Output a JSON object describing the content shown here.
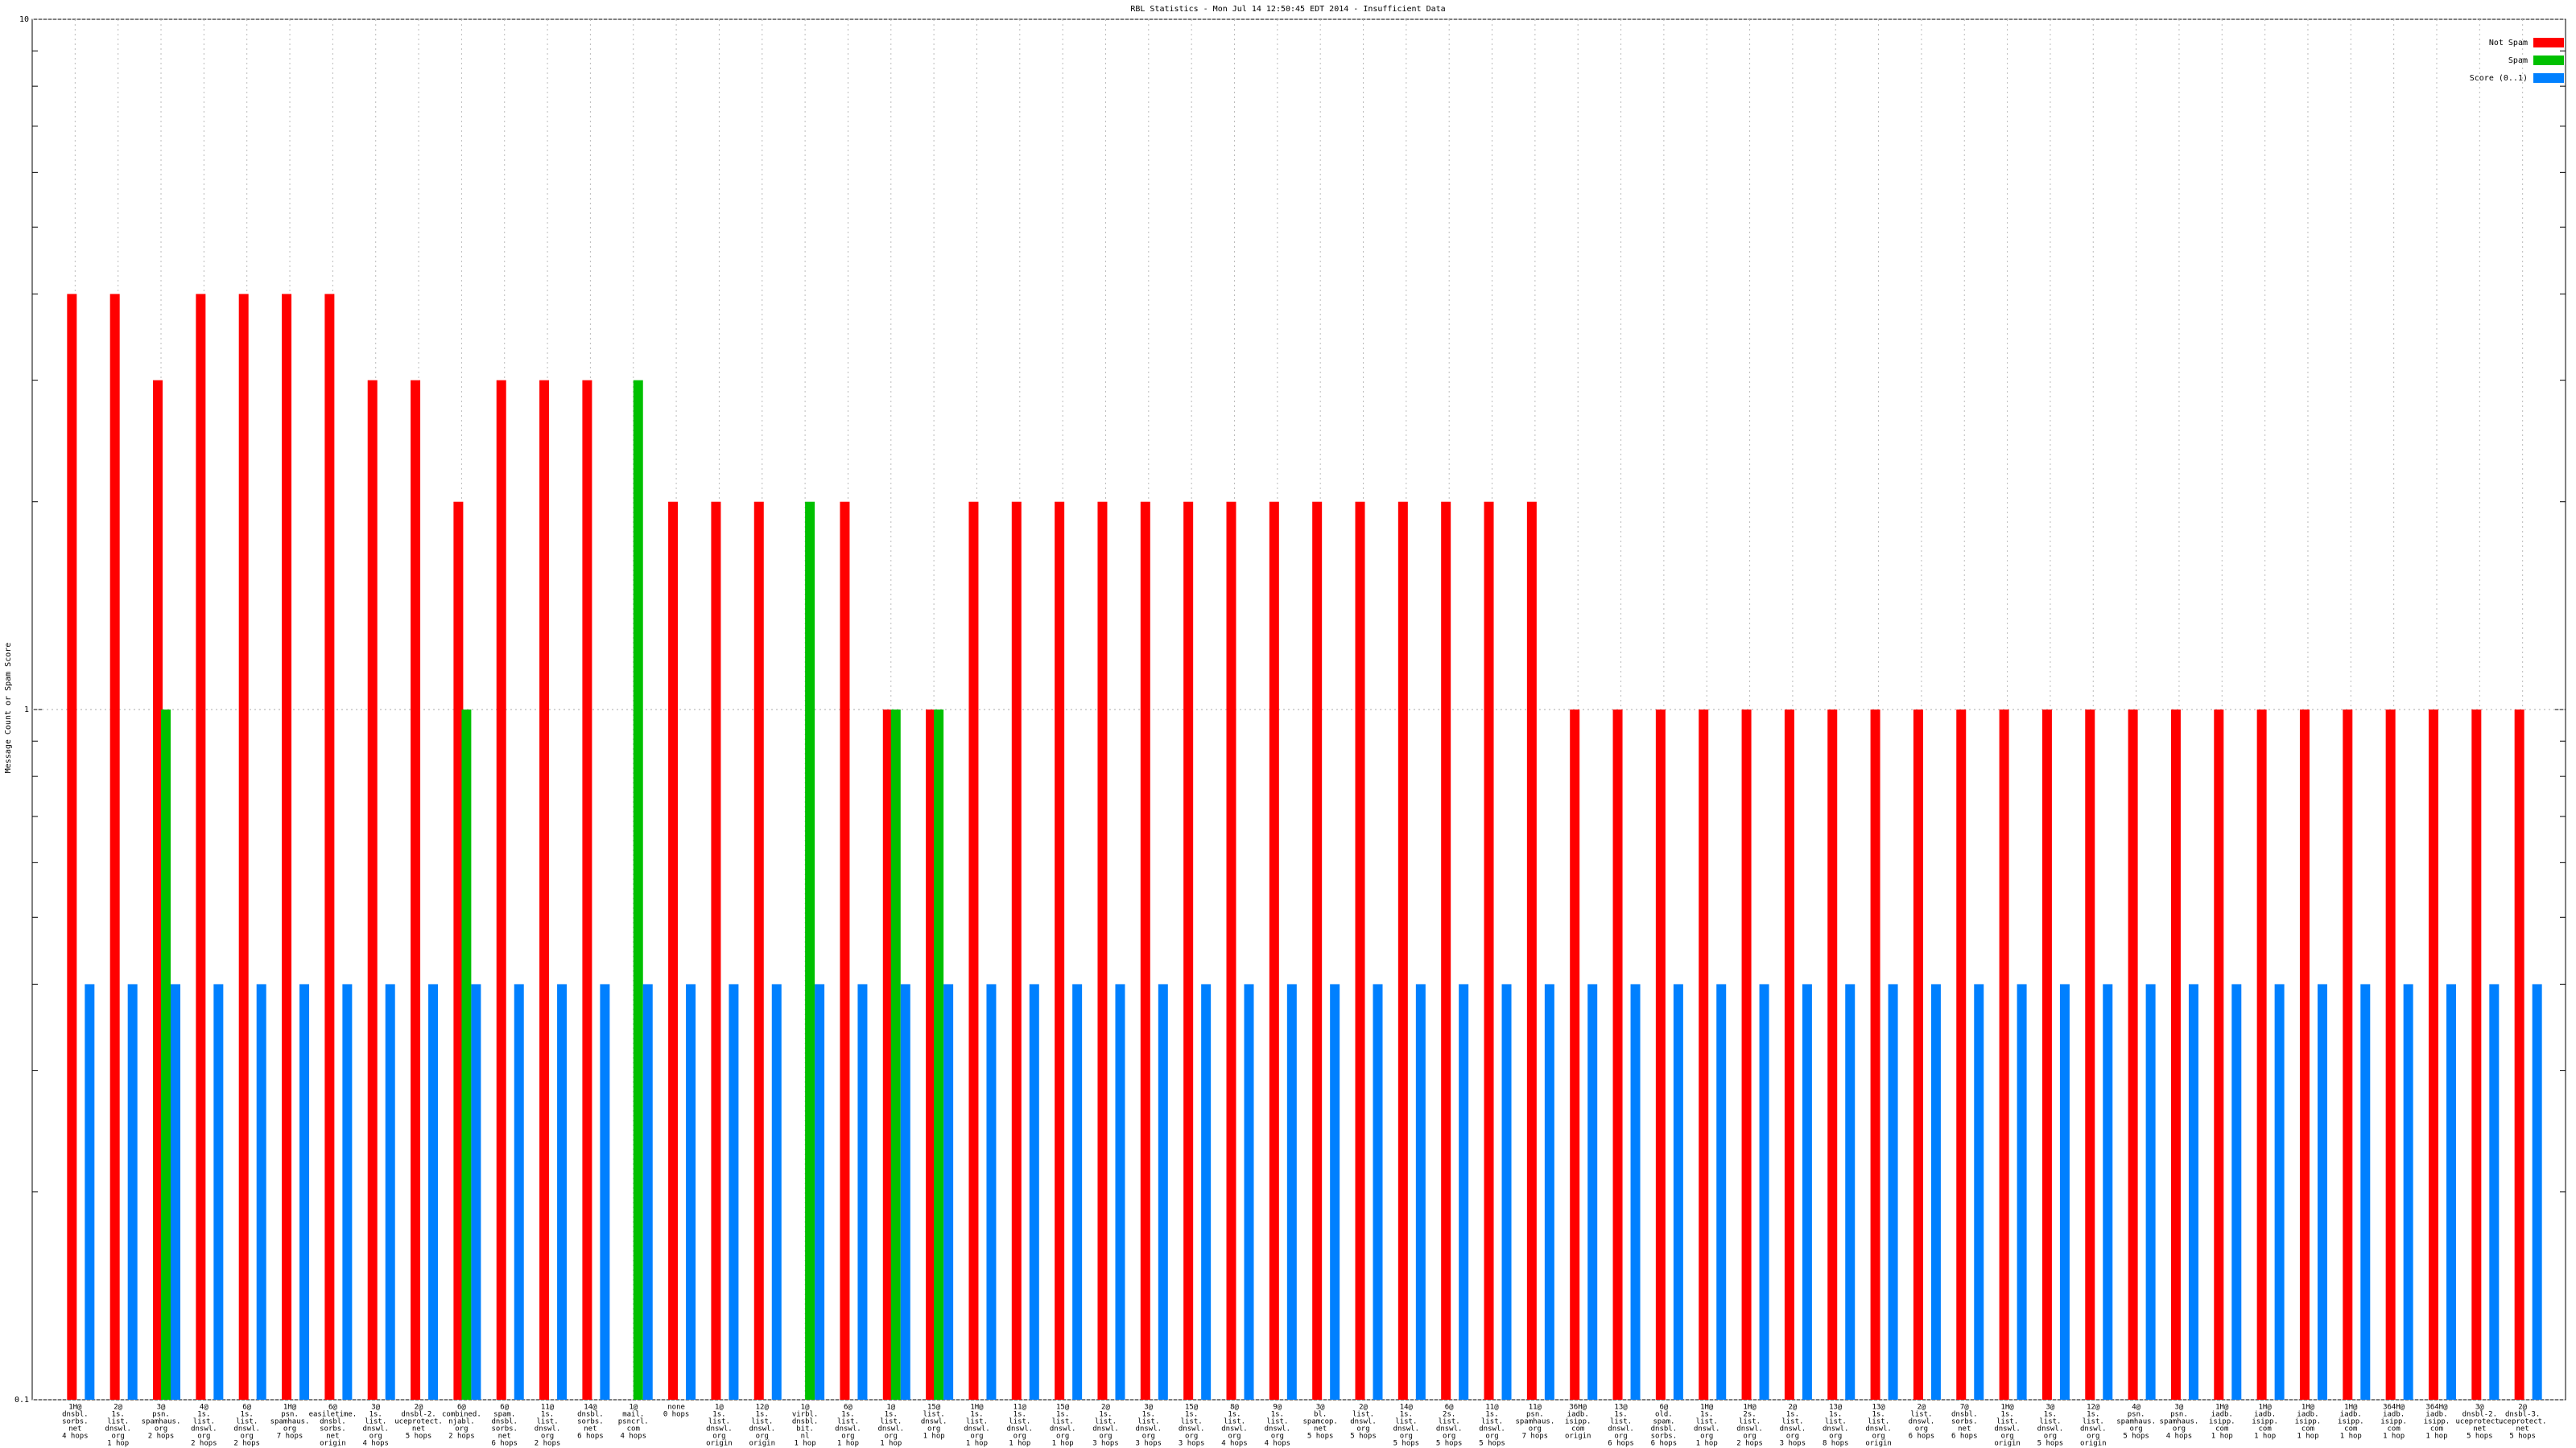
{
  "chart_data": {
    "type": "bar",
    "title": "RBL Statistics - Mon Jul 14 12:50:45 EDT 2014 - Insufficient Data",
    "y_label": "Message Count or Spam Score",
    "log_y": true,
    "ylim": [
      0.1,
      10
    ],
    "yticks": [
      0.1,
      1,
      10
    ],
    "yminorticks": [
      0.2,
      0.3,
      0.4,
      0.5,
      0.6,
      0.7,
      0.8,
      0.9,
      2,
      3,
      4,
      5,
      6,
      7,
      8,
      9
    ],
    "grid": true,
    "legend": "upper right",
    "categories": [
      [
        "1H@",
        "dnsbl.",
        "sorbs.",
        "net",
        "4 hops"
      ],
      [
        "2@",
        "1s.",
        "list.",
        "dnswl.",
        "org",
        "1 hop"
      ],
      [
        "3@",
        "psn.",
        "spamhaus.",
        "org",
        "2 hops"
      ],
      [
        "4@",
        "1s.",
        "list.",
        "dnswl.",
        "org",
        "2 hops"
      ],
      [
        "6@",
        "1s.",
        "list.",
        "dnswl.",
        "org",
        "2 hops"
      ],
      [
        "1H@",
        "psn.",
        "spamhaus.",
        "org",
        "7 hops"
      ],
      [
        "6@",
        "easiletime.",
        "dnsbl.",
        "sorbs.",
        "net",
        "origin"
      ],
      [
        "3@",
        "1s.",
        "list.",
        "dnswl.",
        "org",
        "4 hops"
      ],
      [
        "2@",
        "dnsbl-2.",
        "uceprotect.",
        "net",
        "5 hops"
      ],
      [
        "6@",
        "combined.",
        "njabl.",
        "org",
        "2 hops"
      ],
      [
        "6@",
        "spam.",
        "dnsbl.",
        "sorbs.",
        "net",
        "6 hops"
      ],
      [
        "11@",
        "1s.",
        "list.",
        "dnswl.",
        "org",
        "2 hops"
      ],
      [
        "14@",
        "dnsbl.",
        "sorbs.",
        "net",
        "6 hops"
      ],
      [
        "1@",
        "mail.",
        "psncrl.",
        "com",
        "4 hops"
      ],
      [
        "none",
        "0 hops"
      ],
      [
        "1@",
        "1s.",
        "list.",
        "dnswl.",
        "org",
        "origin"
      ],
      [
        "12@",
        "1s.",
        "list.",
        "dnswl.",
        "org",
        "origin"
      ],
      [
        "1@",
        "virbl.",
        "dnsbl.",
        "bit.",
        "nl",
        "1 hop"
      ],
      [
        "6@",
        "1s.",
        "list.",
        "dnswl.",
        "org",
        "1 hop"
      ],
      [
        "1@",
        "1s.",
        "list.",
        "dnswl.",
        "org",
        "1 hop"
      ],
      [
        "15@",
        "list.",
        "dnswl.",
        "org",
        "1 hop"
      ],
      [
        "1H@",
        "1s.",
        "list.",
        "dnswl.",
        "org",
        "1 hop"
      ],
      [
        "11@",
        "1s.",
        "list.",
        "dnswl.",
        "org",
        "1 hop"
      ],
      [
        "15@",
        "1s.",
        "list.",
        "dnswl.",
        "org",
        "1 hop"
      ],
      [
        "2@",
        "1s.",
        "list.",
        "dnswl.",
        "org",
        "3 hops"
      ],
      [
        "3@",
        "1s.",
        "list.",
        "dnswl.",
        "org",
        "3 hops"
      ],
      [
        "15@",
        "1s.",
        "list.",
        "dnswl.",
        "org",
        "3 hops"
      ],
      [
        "8@",
        "1s.",
        "list.",
        "dnswl.",
        "org",
        "4 hops"
      ],
      [
        "9@",
        "1s.",
        "list.",
        "dnswl.",
        "org",
        "4 hops"
      ],
      [
        "3@",
        "bl.",
        "spamcop.",
        "net",
        "5 hops"
      ],
      [
        "2@",
        "list.",
        "dnswl.",
        "org",
        "5 hops"
      ],
      [
        "14@",
        "1s.",
        "list.",
        "dnswl.",
        "org",
        "5 hops"
      ],
      [
        "6@",
        "2s.",
        "list.",
        "dnswl.",
        "org",
        "5 hops"
      ],
      [
        "11@",
        "1s.",
        "list.",
        "dnswl.",
        "org",
        "5 hops"
      ],
      [
        "11@",
        "psn.",
        "spamhaus.",
        "org",
        "7 hops"
      ],
      [
        "36H@",
        "iadb.",
        "isipp.",
        "com",
        "origin"
      ],
      [
        "13@",
        "1s.",
        "list.",
        "dnswl.",
        "org",
        "6 hops"
      ],
      [
        "6@",
        "old.",
        "spam.",
        "dnsbl.",
        "sorbs.",
        "6 hops"
      ],
      [
        "1H@",
        "1s.",
        "list.",
        "dnswl.",
        "org",
        "1 hop"
      ],
      [
        "1H@",
        "2s.",
        "list.",
        "dnswl.",
        "org",
        "2 hops"
      ],
      [
        "2@",
        "1s.",
        "list.",
        "dnswl.",
        "org",
        "3 hops"
      ],
      [
        "13@",
        "1s.",
        "list.",
        "dnswl.",
        "org",
        "8 hops"
      ],
      [
        "13@",
        "1s.",
        "list.",
        "dnswl.",
        "org",
        "origin"
      ],
      [
        "2@",
        "list.",
        "dnswl.",
        "org",
        "6 hops"
      ],
      [
        "7@",
        "dnsbl.",
        "sorbs.",
        "net",
        "6 hops"
      ],
      [
        "1H@",
        "1s.",
        "list.",
        "dnswl.",
        "org",
        "origin"
      ],
      [
        "3@",
        "1s.",
        "list.",
        "dnswl.",
        "org",
        "5 hops"
      ],
      [
        "12@",
        "1s.",
        "list.",
        "dnswl.",
        "org",
        "origin"
      ],
      [
        "4@",
        "psn.",
        "spamhaus.",
        "org",
        "5 hops"
      ],
      [
        "3@",
        "psn.",
        "spamhaus.",
        "org",
        "4 hops"
      ],
      [
        "1H@",
        "iadb.",
        "isipp.",
        "com",
        "1 hop"
      ],
      [
        "1H@",
        "iadb.",
        "isipp.",
        "com",
        "1 hop"
      ],
      [
        "1H@",
        "iadb.",
        "isipp.",
        "com",
        "1 hop"
      ],
      [
        "1H@",
        "iadb.",
        "isipp.",
        "com",
        "1 hop"
      ],
      [
        "364H@",
        "iadb.",
        "isipp.",
        "com",
        "1 hop"
      ],
      [
        "364H@",
        "iadb.",
        "isipp.",
        "com",
        "1 hop"
      ],
      [
        "3@",
        "dnsbl-2.",
        "uceprotect.",
        "net",
        "5 hops"
      ],
      [
        "2@",
        "dnsbl-3.",
        "uceprotect.",
        "net",
        "5 hops"
      ]
    ],
    "series": [
      {
        "name": "Not Spam",
        "color": "#ff0000",
        "values": [
          4,
          4,
          3,
          4,
          4,
          4,
          4,
          3,
          3,
          2,
          3,
          3,
          3,
          null,
          2,
          2,
          2,
          null,
          2,
          1,
          1,
          2,
          2,
          2,
          2,
          2,
          2,
          2,
          2,
          2,
          2,
          2,
          2,
          2,
          2,
          1,
          1,
          1,
          1,
          1,
          1,
          1,
          1,
          1,
          1,
          1,
          1,
          1,
          1,
          1,
          1,
          1,
          1,
          1,
          1,
          1,
          1,
          1
        ]
      },
      {
        "name": "Spam",
        "color": "#00c000",
        "values": [
          null,
          null,
          1,
          null,
          null,
          null,
          null,
          null,
          null,
          1,
          null,
          null,
          null,
          3,
          null,
          null,
          null,
          2,
          null,
          1,
          1,
          null,
          null,
          null,
          null,
          null,
          null,
          null,
          null,
          null,
          null,
          null,
          null,
          null,
          null,
          null,
          null,
          null,
          null,
          null,
          null,
          null,
          null,
          null,
          null,
          null,
          null,
          null,
          null,
          null,
          null,
          null,
          null,
          null,
          null,
          null,
          null,
          null
        ]
      },
      {
        "name": "Score (0..1)",
        "color": "#0080ff",
        "values": [
          0.4,
          0.4,
          0.4,
          0.4,
          0.4,
          0.4,
          0.4,
          0.4,
          0.4,
          0.4,
          0.4,
          0.4,
          0.4,
          0.4,
          0.4,
          0.4,
          0.4,
          0.4,
          0.4,
          0.4,
          0.4,
          0.4,
          0.4,
          0.4,
          0.4,
          0.4,
          0.4,
          0.4,
          0.4,
          0.4,
          0.4,
          0.4,
          0.4,
          0.4,
          0.4,
          0.4,
          0.4,
          0.4,
          0.4,
          0.4,
          0.4,
          0.4,
          0.4,
          0.4,
          0.4,
          0.4,
          0.4,
          0.4,
          0.4,
          0.4,
          0.4,
          0.4,
          0.4,
          0.4,
          0.4,
          0.4,
          0.4,
          0.4
        ]
      }
    ]
  }
}
